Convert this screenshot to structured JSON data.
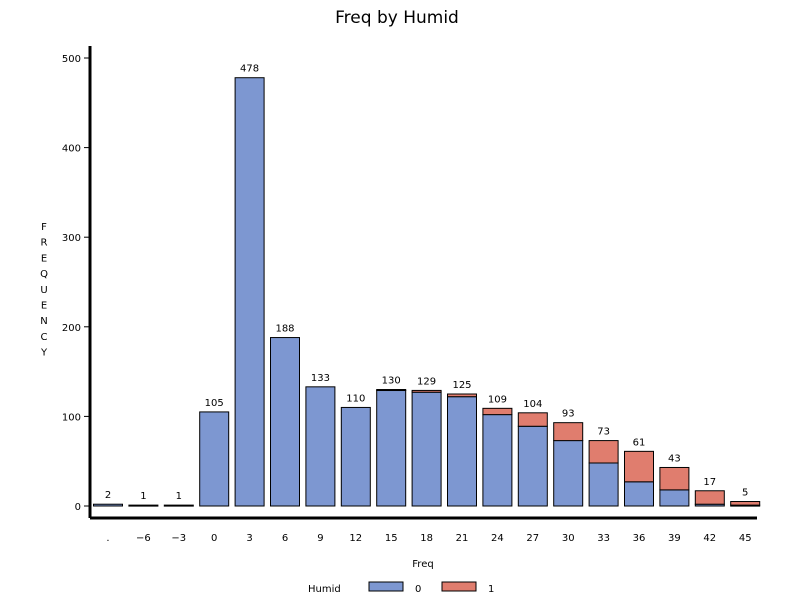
{
  "chart_data": {
    "type": "bar",
    "stacked": true,
    "title": "Freq by Humid",
    "xlabel": "Freq",
    "ylabel": "FREQUENCY",
    "ylim": [
      0,
      500
    ],
    "yticks": [
      "0",
      "100",
      "200",
      "300",
      "400",
      "500"
    ],
    "categories": [
      ".",
      "−6",
      "−3",
      "0",
      "3",
      "6",
      "9",
      "12",
      "15",
      "18",
      "21",
      "24",
      "27",
      "30",
      "33",
      "36",
      "39",
      "42",
      "45"
    ],
    "totals": [
      "2",
      "1",
      "1",
      "105",
      "478",
      "188",
      "133",
      "110",
      "130",
      "129",
      "125",
      "109",
      "104",
      "93",
      "73",
      "61",
      "43",
      "17",
      "5"
    ],
    "series": [
      {
        "name": "0",
        "color": "#7d97d1",
        "values": [
          2,
          1,
          1,
          105,
          478,
          188,
          133,
          110,
          129,
          127,
          122,
          102,
          89,
          73,
          48,
          27,
          18,
          2,
          1
        ]
      },
      {
        "name": "1",
        "color": "#e07d6e",
        "values": [
          0,
          0,
          0,
          0,
          0,
          0,
          0,
          0,
          1,
          2,
          3,
          7,
          15,
          20,
          25,
          34,
          25,
          15,
          4
        ]
      }
    ],
    "legend": {
      "title": "Humid",
      "position": "bottom"
    }
  }
}
